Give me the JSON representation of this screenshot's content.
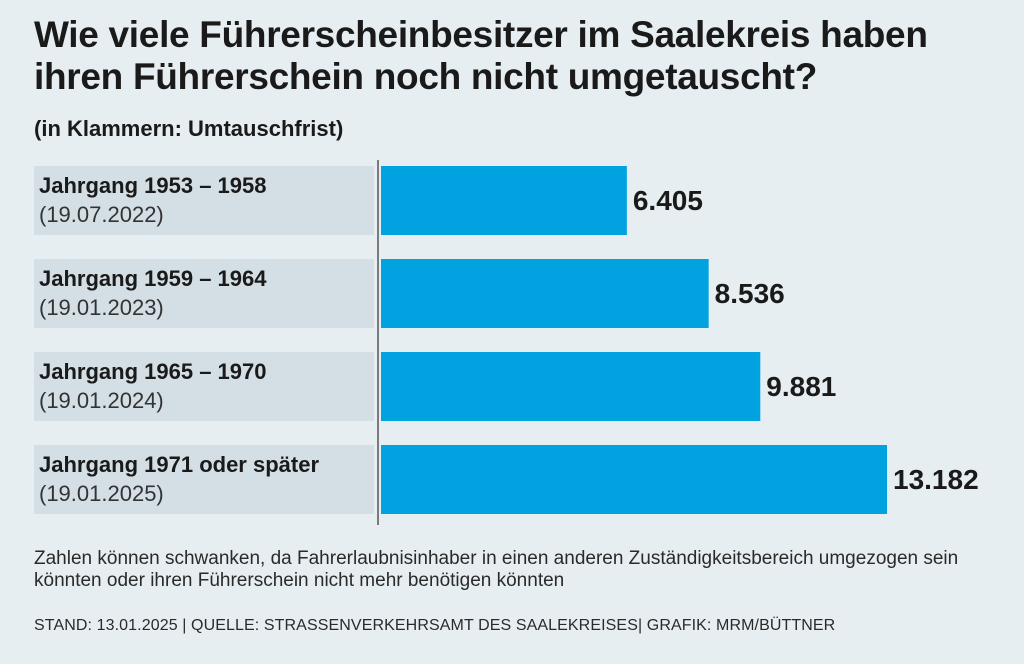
{
  "title": "Wie viele Führerscheinbesitzer im Saalekreis haben ihren Führerschein noch nicht umgetauscht?",
  "subtitle": "(in Klammern: Umtauschfrist)",
  "footnote": "Zahlen können schwanken, da Fahrerlaubnisinhaber in einen anderen Zuständigkeitsbereich umgezogen sein könnten oder ihren Führerschein nicht mehr benötigen könnten",
  "meta": "STAND: 13.01.2025 | QUELLE: STRASSENVERKEHRSAMT DES SAALEKREISES| GRAFIK: MRM/BÜTTNER",
  "colors": {
    "bar": "#00a3e0",
    "label_bg": "#d3dfe4",
    "background": "#e6eef2"
  },
  "chart_data": {
    "type": "bar",
    "orientation": "horizontal",
    "categories": [
      "Jahrgang 1953 – 1958",
      "Jahrgang 1959 – 1964",
      "Jahrgang 1965 – 1970",
      "Jahrgang 1971 oder später"
    ],
    "sublabels": [
      "(19.07.2022)",
      "(19.01.2023)",
      "(19.01.2024)",
      "(19.01.2025)"
    ],
    "values": [
      6405,
      8536,
      9881,
      13182
    ],
    "value_labels": [
      "6.405",
      "8.536",
      "9.881",
      "13.182"
    ],
    "xlim": [
      0,
      13182
    ],
    "grid": false,
    "legend": "none"
  }
}
